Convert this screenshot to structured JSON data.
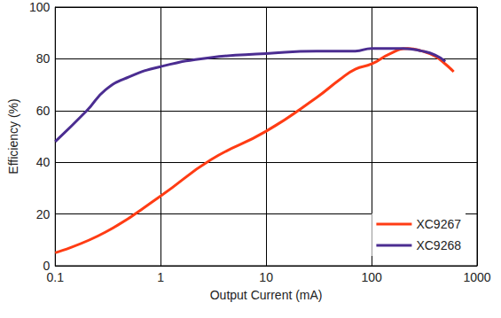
{
  "chart_data": {
    "type": "line",
    "x_label": "Output Current (mA)",
    "y_label": "Efficiency (%)",
    "log": "x",
    "xlim": [
      0.1,
      1000
    ],
    "xticks": [
      0.1,
      1,
      10,
      100,
      1000
    ],
    "ylim": [
      0,
      100
    ],
    "yticks": [
      0,
      20,
      40,
      60,
      80,
      100
    ],
    "grid": true,
    "legend": "lower right",
    "series": [
      {
        "name": "XC9267",
        "color": "#ff3c14",
        "x": [
          0.1,
          0.3,
          1,
          3,
          10,
          30,
          50,
          70,
          100,
          150,
          220,
          300,
          400,
          500,
          600
        ],
        "values": [
          5,
          13,
          27,
          41,
          52,
          65,
          72,
          76,
          78,
          82,
          84,
          83,
          81,
          78,
          75
        ]
      },
      {
        "name": "XC9268",
        "color": "#4b2d91",
        "x": [
          0.1,
          0.2,
          0.3,
          0.5,
          1,
          3,
          10,
          30,
          70,
          100,
          200,
          300,
          400,
          500
        ],
        "values": [
          48,
          60,
          68,
          73,
          77,
          80.5,
          82,
          83,
          83,
          84,
          84,
          83,
          81.5,
          79
        ]
      }
    ]
  }
}
